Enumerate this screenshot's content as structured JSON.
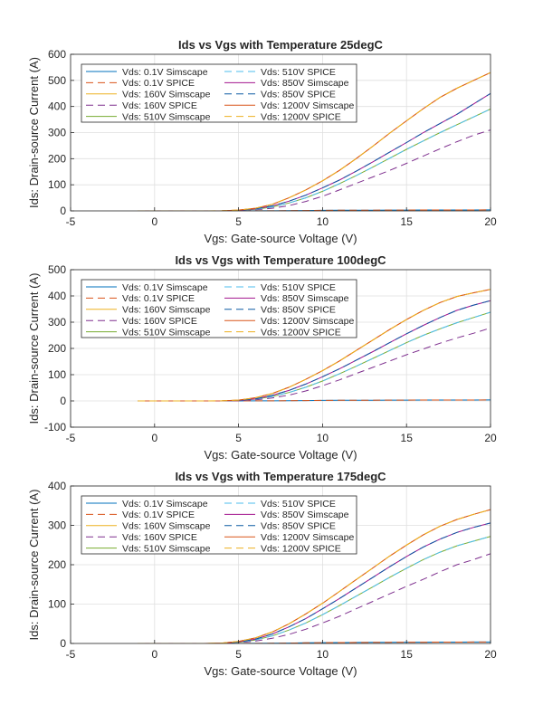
{
  "figure": {
    "colors": {
      "blue": "#0072BD",
      "orange": "#D95319",
      "yellow": "#EDB120",
      "purple": "#7E2F8E",
      "green": "#77AC30",
      "cyan": "#4DBEEE",
      "magenta": "#A2148E",
      "navy": "#0B5AA4",
      "dark_orange": "#D95319",
      "grid": "#DFDFDF",
      "axis": "#262626"
    }
  },
  "chart_data": [
    {
      "type": "line",
      "title": "Ids vs Vgs with Temperature 25degC",
      "xlabel": "Vgs: Gate-source Voltage (V)",
      "ylabel": "Ids: Drain-source Current (A)",
      "xlim": [
        -5,
        20
      ],
      "ylim": [
        0,
        600
      ],
      "xticks": [
        -5,
        0,
        5,
        10,
        15,
        20
      ],
      "yticks": [
        0,
        100,
        200,
        300,
        400,
        500,
        600
      ],
      "grid": true,
      "legend_position": "top-left",
      "legend_columns": 2,
      "x": [
        -1,
        0,
        1,
        2,
        3,
        4,
        5,
        6,
        7,
        8,
        9,
        10,
        11,
        12,
        13,
        14,
        15,
        16,
        17,
        18,
        19,
        20
      ],
      "series": [
        {
          "name": "Vds: 0.1V Simscape",
          "color": "blue",
          "dash": false,
          "values": [
            0,
            0,
            0,
            0,
            0,
            0,
            0,
            0.2,
            0.5,
            1,
            1.5,
            2,
            2.3,
            2.6,
            2.8,
            3,
            3.2,
            3.3,
            3.4,
            3.5,
            3.6,
            3.7
          ]
        },
        {
          "name": "Vds: 0.1V SPICE",
          "color": "orange",
          "dash": true,
          "values": [
            0,
            0,
            0,
            0,
            0,
            0,
            0,
            0.2,
            0.5,
            1,
            1.5,
            2,
            2.3,
            2.6,
            2.8,
            3,
            3.2,
            3.3,
            3.4,
            3.5,
            3.6,
            3.7
          ]
        },
        {
          "name": "Vds: 160V Simscape",
          "color": "yellow",
          "dash": false,
          "values": [
            0,
            0,
            0,
            0,
            0,
            0.5,
            3,
            10,
            25,
            50,
            80,
            115,
            155,
            200,
            248,
            298,
            345,
            392,
            435,
            470,
            500,
            530
          ]
        },
        {
          "name": "Vds: 160V SPICE",
          "color": "purple",
          "dash": true,
          "values": [
            0,
            0,
            0,
            0,
            0,
            0,
            1,
            4,
            10,
            20,
            36,
            56,
            80,
            105,
            130,
            155,
            182,
            210,
            238,
            265,
            290,
            310
          ]
        },
        {
          "name": "Vds: 510V Simscape",
          "color": "green",
          "dash": false,
          "values": [
            0,
            0,
            0,
            0,
            0,
            0,
            2,
            6,
            15,
            30,
            50,
            75,
            104,
            135,
            168,
            202,
            236,
            268,
            300,
            330,
            360,
            390
          ]
        },
        {
          "name": "Vds: 510V SPICE",
          "color": "cyan",
          "dash": true,
          "values": [
            0,
            0,
            0,
            0,
            0,
            0,
            2,
            6,
            15,
            30,
            50,
            75,
            104,
            135,
            168,
            202,
            236,
            268,
            300,
            330,
            360,
            390
          ]
        },
        {
          "name": "Vds: 850V Simscape",
          "color": "magenta",
          "dash": false,
          "values": [
            0,
            0,
            0,
            0,
            0,
            0,
            2,
            8,
            19,
            37,
            60,
            88,
            118,
            152,
            188,
            225,
            262,
            300,
            335,
            370,
            410,
            450
          ]
        },
        {
          "name": "Vds: 850V SPICE",
          "color": "navy",
          "dash": true,
          "values": [
            0,
            0,
            0,
            0,
            0,
            0,
            2,
            8,
            19,
            37,
            60,
            88,
            118,
            152,
            188,
            225,
            262,
            300,
            335,
            370,
            410,
            450
          ]
        },
        {
          "name": "Vds: 1200V Simscape",
          "color": "dark_orange",
          "dash": false,
          "values": [
            0,
            0,
            0,
            0,
            0,
            0.5,
            3,
            10,
            25,
            50,
            80,
            115,
            155,
            200,
            248,
            298,
            345,
            392,
            435,
            470,
            500,
            530
          ]
        },
        {
          "name": "Vds: 1200V SPICE",
          "color": "yellow",
          "dash": true,
          "values": [
            0,
            0,
            0,
            0,
            0,
            0.5,
            3,
            10,
            25,
            50,
            80,
            115,
            155,
            200,
            248,
            298,
            345,
            392,
            435,
            470,
            500,
            530
          ]
        }
      ]
    },
    {
      "type": "line",
      "title": "Ids vs Vgs with Temperature 100degC",
      "xlabel": "Vgs: Gate-source Voltage (V)",
      "ylabel": "Ids: Drain-source Current (A)",
      "xlim": [
        -5,
        20
      ],
      "ylim": [
        -100,
        500
      ],
      "xticks": [
        -5,
        0,
        5,
        10,
        15,
        20
      ],
      "yticks": [
        -100,
        0,
        100,
        200,
        300,
        400,
        500
      ],
      "grid": true,
      "legend_position": "top-left",
      "legend_columns": 2,
      "x": [
        -1,
        0,
        1,
        2,
        3,
        4,
        5,
        6,
        7,
        8,
        9,
        10,
        11,
        12,
        13,
        14,
        15,
        16,
        17,
        18,
        19,
        20
      ],
      "series": [
        {
          "name": "Vds: 0.1V Simscape",
          "color": "blue",
          "dash": false,
          "values": [
            0,
            0,
            0,
            0,
            0,
            0,
            0,
            0.2,
            0.5,
            1,
            1.5,
            2,
            2.3,
            2.6,
            2.8,
            3,
            3.2,
            3.3,
            3.4,
            3.5,
            3.6,
            3.7
          ]
        },
        {
          "name": "Vds: 0.1V SPICE",
          "color": "orange",
          "dash": true,
          "values": [
            0,
            0,
            0,
            0,
            0,
            0,
            0,
            0.2,
            0.5,
            1,
            1.5,
            2,
            2.3,
            2.6,
            2.8,
            3,
            3.2,
            3.3,
            3.4,
            3.5,
            3.6,
            3.7
          ]
        },
        {
          "name": "Vds: 160V Simscape",
          "color": "yellow",
          "dash": false,
          "values": [
            0,
            0,
            0,
            0,
            0,
            0.5,
            3,
            12,
            28,
            52,
            82,
            115,
            152,
            192,
            232,
            272,
            310,
            345,
            375,
            398,
            412,
            425
          ]
        },
        {
          "name": "Vds: 160V SPICE",
          "color": "purple",
          "dash": true,
          "values": [
            0,
            0,
            0,
            0,
            0,
            0,
            1,
            4,
            11,
            22,
            38,
            58,
            80,
            104,
            128,
            152,
            176,
            198,
            220,
            240,
            258,
            278
          ]
        },
        {
          "name": "Vds: 510V Simscape",
          "color": "green",
          "dash": false,
          "values": [
            0,
            0,
            0,
            0,
            0,
            0,
            2,
            7,
            17,
            32,
            52,
            76,
            103,
            132,
            162,
            192,
            222,
            250,
            275,
            298,
            318,
            338
          ]
        },
        {
          "name": "Vds: 510V SPICE",
          "color": "cyan",
          "dash": true,
          "values": [
            0,
            0,
            0,
            0,
            0,
            0,
            2,
            7,
            17,
            32,
            52,
            76,
            103,
            132,
            162,
            192,
            222,
            250,
            275,
            298,
            318,
            338
          ]
        },
        {
          "name": "Vds: 850V Simscape",
          "color": "magenta",
          "dash": false,
          "values": [
            0,
            0,
            0,
            0,
            0,
            0,
            2,
            8,
            21,
            40,
            64,
            92,
            122,
            155,
            188,
            222,
            256,
            288,
            318,
            345,
            365,
            382
          ]
        },
        {
          "name": "Vds: 850V SPICE",
          "color": "navy",
          "dash": true,
          "values": [
            0,
            0,
            0,
            0,
            0,
            0,
            2,
            8,
            21,
            40,
            64,
            92,
            122,
            155,
            188,
            222,
            256,
            288,
            318,
            345,
            365,
            382
          ]
        },
        {
          "name": "Vds: 1200V Simscape",
          "color": "dark_orange",
          "dash": false,
          "values": [
            0,
            0,
            0,
            0,
            0,
            0.5,
            3,
            12,
            28,
            52,
            82,
            115,
            152,
            192,
            232,
            272,
            310,
            345,
            375,
            398,
            412,
            425
          ]
        },
        {
          "name": "Vds: 1200V SPICE",
          "color": "yellow",
          "dash": true,
          "values": [
            0,
            0,
            0,
            0,
            0,
            0.5,
            3,
            12,
            28,
            52,
            82,
            115,
            152,
            192,
            232,
            272,
            310,
            345,
            375,
            398,
            412,
            425
          ]
        }
      ]
    },
    {
      "type": "line",
      "title": "Ids vs Vgs with Temperature 175degC",
      "xlabel": "Vgs: Gate-source Voltage (V)",
      "ylabel": "Ids: Drain-source Current (A)",
      "xlim": [
        -5,
        20
      ],
      "ylim": [
        0,
        400
      ],
      "xticks": [
        -5,
        0,
        5,
        10,
        15,
        20
      ],
      "yticks": [
        0,
        100,
        200,
        300,
        400
      ],
      "grid": true,
      "legend_position": "top-left",
      "legend_columns": 2,
      "x": [
        -1,
        0,
        1,
        2,
        3,
        4,
        5,
        6,
        7,
        8,
        9,
        10,
        11,
        12,
        13,
        14,
        15,
        16,
        17,
        18,
        19,
        20
      ],
      "series": [
        {
          "name": "Vds: 0.1V Simscape",
          "color": "blue",
          "dash": false,
          "values": [
            0,
            0,
            0,
            0,
            0,
            0,
            0,
            0.2,
            0.5,
            1,
            1.5,
            2,
            2.3,
            2.6,
            2.8,
            3,
            3.2,
            3.3,
            3.4,
            3.5,
            3.6,
            3.7
          ]
        },
        {
          "name": "Vds: 0.1V SPICE",
          "color": "orange",
          "dash": true,
          "values": [
            0,
            0,
            0,
            0,
            0,
            0,
            0,
            0.2,
            0.5,
            1,
            1.5,
            2,
            2.3,
            2.6,
            2.8,
            3,
            3.2,
            3.3,
            3.4,
            3.5,
            3.6,
            3.7
          ]
        },
        {
          "name": "Vds: 160V Simscape",
          "color": "yellow",
          "dash": false,
          "values": [
            0,
            0,
            0,
            0,
            0,
            1,
            5,
            14,
            29,
            50,
            75,
            102,
            132,
            162,
            192,
            222,
            250,
            276,
            298,
            315,
            328,
            340
          ]
        },
        {
          "name": "Vds: 160V SPICE",
          "color": "purple",
          "dash": true,
          "values": [
            0,
            0,
            0,
            0,
            0,
            0,
            2,
            6,
            13,
            23,
            36,
            52,
            69,
            88,
            107,
            126,
            145,
            163,
            182,
            200,
            213,
            228
          ]
        },
        {
          "name": "Vds: 510V Simscape",
          "color": "green",
          "dash": false,
          "values": [
            0,
            0,
            0,
            0,
            0,
            0,
            3,
            9,
            19,
            34,
            52,
            73,
            96,
            120,
            144,
            168,
            191,
            213,
            232,
            248,
            260,
            272
          ]
        },
        {
          "name": "Vds: 510V SPICE",
          "color": "cyan",
          "dash": true,
          "values": [
            0,
            0,
            0,
            0,
            0,
            0,
            3,
            9,
            19,
            34,
            52,
            73,
            96,
            120,
            144,
            168,
            191,
            213,
            232,
            248,
            260,
            272
          ]
        },
        {
          "name": "Vds: 850V Simscape",
          "color": "magenta",
          "dash": false,
          "values": [
            0,
            0,
            0,
            0,
            0,
            0,
            4,
            11,
            24,
            42,
            63,
            88,
            114,
            141,
            168,
            195,
            221,
            245,
            265,
            282,
            295,
            306
          ]
        },
        {
          "name": "Vds: 850V SPICE",
          "color": "navy",
          "dash": true,
          "values": [
            0,
            0,
            0,
            0,
            0,
            0,
            4,
            11,
            24,
            42,
            63,
            88,
            114,
            141,
            168,
            195,
            221,
            245,
            265,
            282,
            295,
            306
          ]
        },
        {
          "name": "Vds: 1200V Simscape",
          "color": "dark_orange",
          "dash": false,
          "values": [
            0,
            0,
            0,
            0,
            0,
            1,
            5,
            14,
            29,
            50,
            75,
            102,
            132,
            162,
            192,
            222,
            250,
            276,
            298,
            315,
            328,
            340
          ]
        },
        {
          "name": "Vds: 1200V SPICE",
          "color": "yellow",
          "dash": true,
          "values": [
            0,
            0,
            0,
            0,
            0,
            1,
            5,
            14,
            29,
            50,
            75,
            102,
            132,
            162,
            192,
            222,
            250,
            276,
            298,
            315,
            328,
            340
          ]
        }
      ]
    }
  ]
}
